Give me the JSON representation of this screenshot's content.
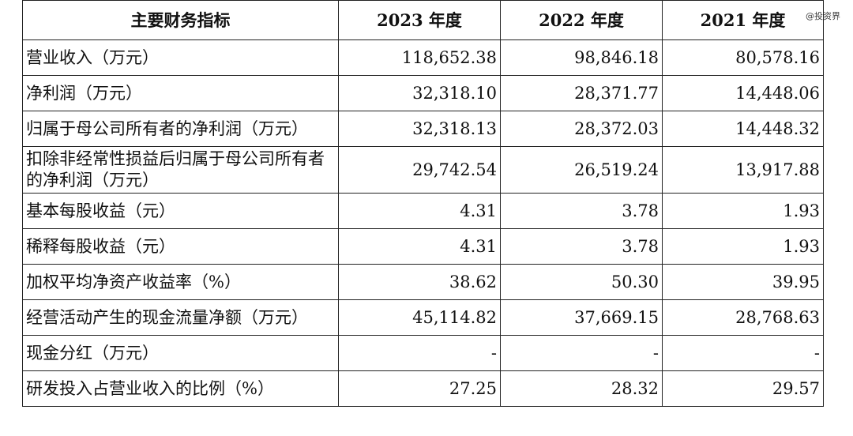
{
  "watermark": "@投资界",
  "table": {
    "headers": [
      "主要财务指标",
      "2023 年度",
      "2022 年度",
      "2021 年度"
    ],
    "rows": [
      {
        "label": "营业收入（万元）",
        "values": [
          "118,652.38",
          "98,846.18",
          "80,578.16"
        ]
      },
      {
        "label": "净利润（万元）",
        "values": [
          "32,318.10",
          "28,371.77",
          "14,448.06"
        ]
      },
      {
        "label": "归属于母公司所有者的净利润（万元）",
        "values": [
          "32,318.13",
          "28,372.03",
          "14,448.32"
        ]
      },
      {
        "label": "扣除非经常性损益后归属于母公司所有者的净利润（万元）",
        "values": [
          "29,742.54",
          "26,519.24",
          "13,917.88"
        ]
      },
      {
        "label": "基本每股收益（元）",
        "values": [
          "4.31",
          "3.78",
          "1.93"
        ]
      },
      {
        "label": "稀释每股收益（元）",
        "values": [
          "4.31",
          "3.78",
          "1.93"
        ]
      },
      {
        "label": "加权平均净资产收益率（%）",
        "values": [
          "38.62",
          "50.30",
          "39.95"
        ]
      },
      {
        "label": "经营活动产生的现金流量净额（万元）",
        "values": [
          "45,114.82",
          "37,669.15",
          "28,768.63"
        ]
      },
      {
        "label": "现金分红（万元）",
        "values": [
          "-",
          "-",
          "-"
        ]
      },
      {
        "label": "研发投入占营业收入的比例（%）",
        "values": [
          "27.25",
          "28.32",
          "29.57"
        ]
      }
    ]
  }
}
